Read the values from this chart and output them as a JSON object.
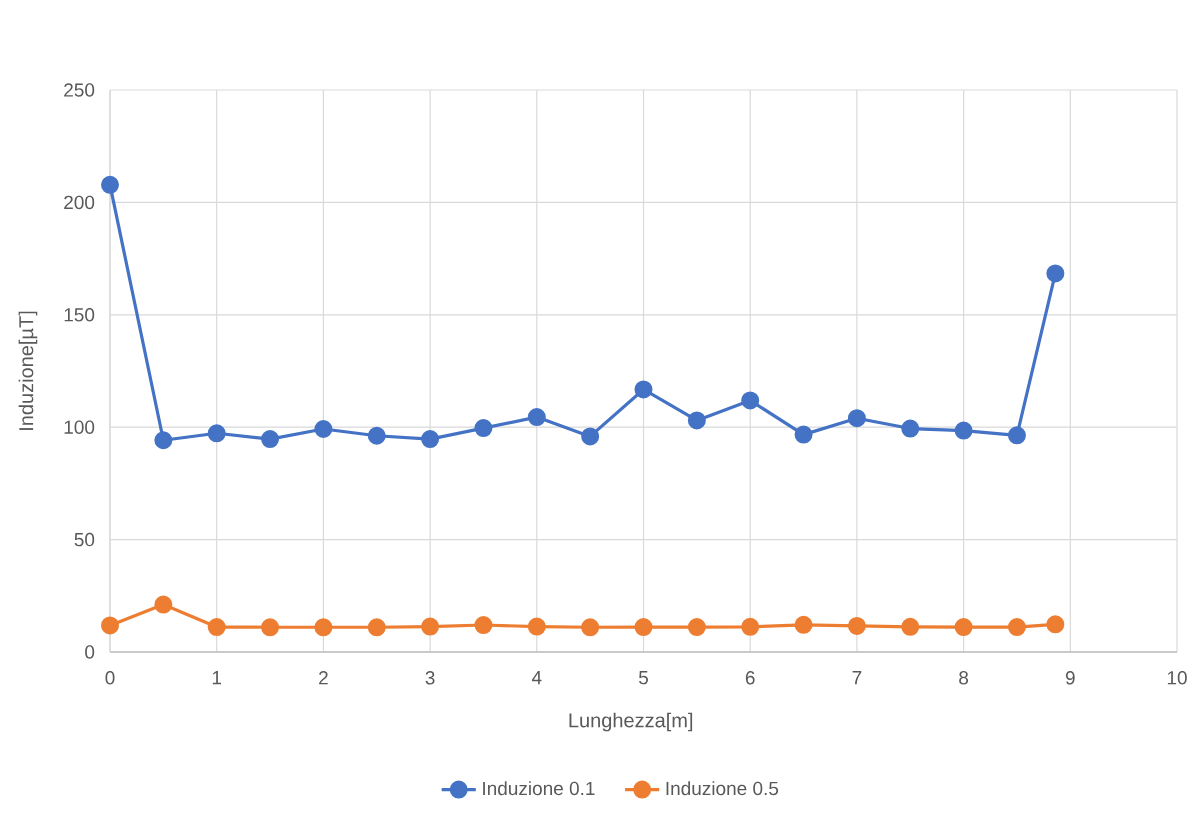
{
  "chart_data": {
    "type": "line",
    "xlabel": "Lunghezza[m]",
    "ylabel": "Induzione[µT]",
    "x": [
      0,
      0.5,
      1,
      1.5,
      2,
      2.5,
      3,
      3.5,
      4,
      4.5,
      5,
      5.5,
      6,
      6.5,
      7,
      7.5,
      8,
      8.5,
      8.86
    ],
    "series": [
      {
        "name": "Induzione 0.1",
        "color": "#4472c4",
        "values": [
          207.8,
          94.2,
          97.3,
          94.7,
          99.2,
          96.2,
          94.7,
          99.6,
          104.5,
          95.9,
          116.8,
          103.0,
          111.9,
          96.7,
          104.0,
          99.4,
          98.5,
          96.4,
          168.4
        ]
      },
      {
        "name": "Induzione 0.5",
        "color": "#ed7d31",
        "values": [
          11.8,
          21.1,
          11.1,
          11.0,
          11.0,
          11.0,
          11.3,
          12.0,
          11.3,
          11.0,
          11.1,
          11.1,
          11.2,
          12.1,
          11.6,
          11.2,
          11.1,
          11.1,
          12.3
        ]
      }
    ],
    "xlim": [
      0,
      10
    ],
    "ylim": [
      0,
      250
    ],
    "xticks": [
      0,
      1,
      2,
      3,
      4,
      5,
      6,
      7,
      8,
      9,
      10
    ],
    "yticks": [
      0,
      50,
      100,
      150,
      200,
      250
    ],
    "grid": true,
    "legend": "bottom",
    "marker": "circle",
    "line_style": "solid"
  }
}
